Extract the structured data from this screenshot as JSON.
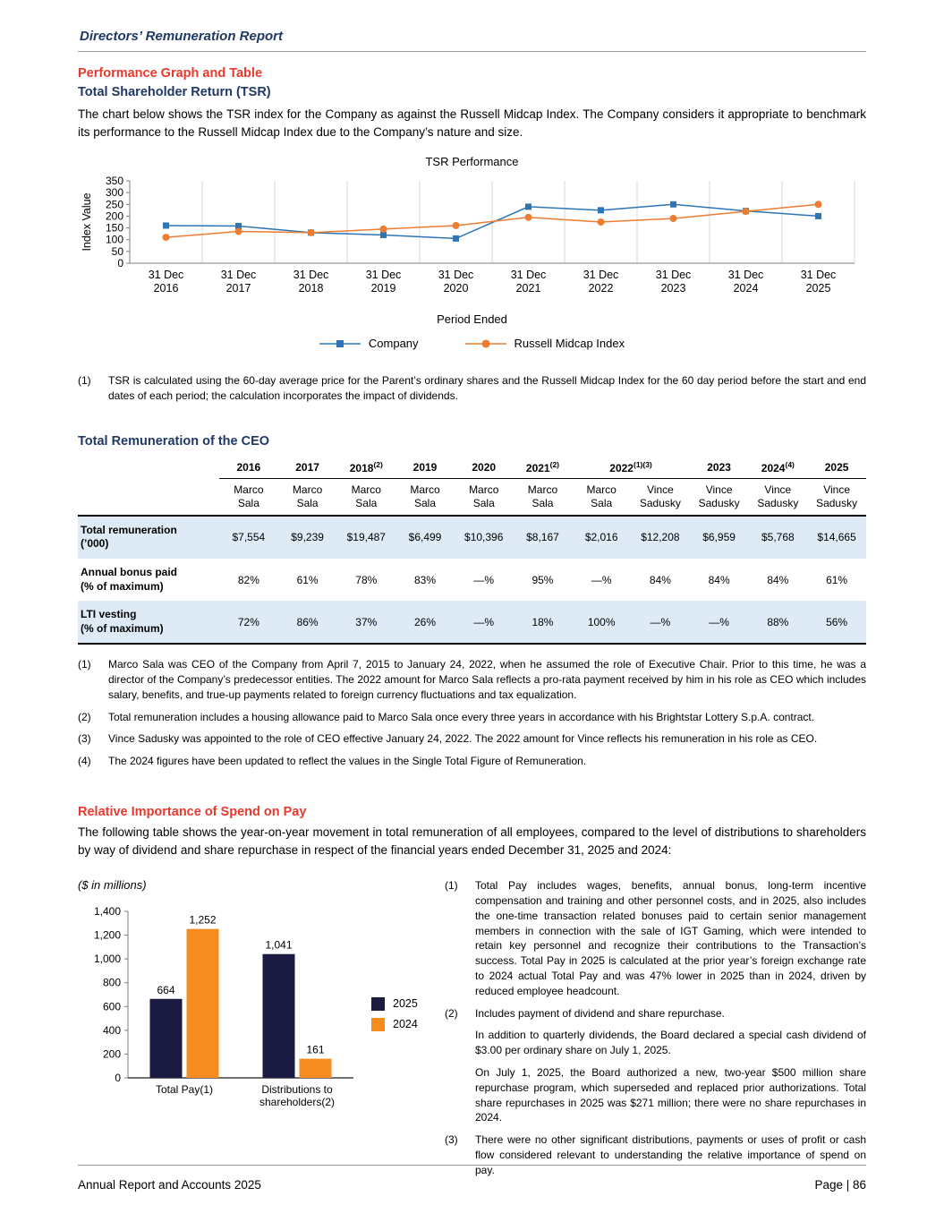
{
  "colors": {
    "red": "#E9392C",
    "navy": "#1F3864",
    "stripe": "#DEEBF7"
  },
  "page": {
    "header_title": "Directors’ Remuneration Report",
    "footer_left": "Annual Report and Accounts 2025",
    "footer_right": "Page | 86"
  },
  "tsr_section": {
    "heading": "Performance Graph and Table",
    "subheading": "Total Shareholder Return (TSR)",
    "body": "The chart below shows the TSR index for the Company as against the Russell Midcap Index. The Company considers it appropriate to benchmark its performance to the Russell Midcap Index due to the Company’s nature and size.",
    "footnote": {
      "num": "(1)",
      "text": "TSR is calculated using the 60-day average price for the Parent’s ordinary shares and the Russell Midcap Index for the 60 day period before the start and end dates of each period; the calculation incorporates the impact of dividends."
    }
  },
  "ceo_section": {
    "heading": "Total Remuneration of the CEO",
    "table": {
      "col_years": [
        {
          "y": "2016"
        },
        {
          "y": "2017"
        },
        {
          "y": "2018",
          "sup": "(2)"
        },
        {
          "y": "2019"
        },
        {
          "y": "2020"
        },
        {
          "y": "2021",
          "sup": "(2)"
        },
        {
          "y": "2022",
          "sup": "(1)(3)",
          "span": 2
        },
        {
          "y": "2023"
        },
        {
          "y": "2024",
          "sup": "(4)"
        },
        {
          "y": "2025"
        }
      ],
      "names": [
        "Marco\nSala",
        "Marco\nSala",
        "Marco\nSala",
        "Marco\nSala",
        "Marco\nSala",
        "Marco\nSala",
        "Marco\nSala",
        "Vince\nSadusky",
        "Vince\nSadusky",
        "Vince\nSadusky",
        "Vince\nSadusky"
      ],
      "rows": [
        {
          "label": "Total remuneration\n(’000)",
          "values": [
            "$7,554",
            "$9,239",
            "$19,487",
            "$6,499",
            "$10,396",
            "$8,167",
            "$2,016",
            "$12,208",
            "$6,959",
            "$5,768",
            "$14,665"
          ],
          "shaded": true
        },
        {
          "label": "Annual bonus paid\n(% of maximum)",
          "values": [
            "82%",
            "61%",
            "78%",
            "83%",
            "—%",
            "95%",
            "—%",
            "84%",
            "84%",
            "84%",
            "61%"
          ],
          "shaded": false
        },
        {
          "label": "LTI vesting\n(% of maximum)",
          "values": [
            "72%",
            "86%",
            "37%",
            "26%",
            "—%",
            "18%",
            "100%",
            "—%",
            "—%",
            "88%",
            "56%"
          ],
          "shaded": true
        }
      ]
    },
    "footnotes": [
      {
        "num": "(1)",
        "text": "Marco Sala was CEO of the Company from April 7, 2015 to January 24, 2022, when he assumed the role of Executive Chair. Prior to this time, he was a director of the Company’s predecessor entities. The 2022 amount for Marco Sala reflects a pro-rata payment received by him in his role as CEO which includes salary, benefits, and true-up payments related to foreign currency fluctuations and tax equalization."
      },
      {
        "num": "(2)",
        "text": "Total remuneration includes a housing allowance paid to Marco Sala once every three years in accordance with his Brightstar Lottery S.p.A. contract."
      },
      {
        "num": "(3)",
        "text": "Vince Sadusky was appointed to the role of CEO effective January 24, 2022. The 2022 amount for Vince reflects his remuneration in his role as CEO."
      },
      {
        "num": "(4)",
        "text": "The 2024 figures have been updated to reflect the values in the Single Total Figure of Remuneration."
      }
    ]
  },
  "spend_section": {
    "heading": "Relative Importance of Spend on Pay",
    "body": "The following table shows the year-on-year movement in total remuneration of all employees, compared to the level of distributions to shareholders by way of dividend and share repurchase in respect of the financial years ended December 31, 2025 and 2024:",
    "footnotes": [
      {
        "num": "(1)",
        "paras": [
          "Total Pay includes wages, benefits, annual bonus, long-term incentive compensation and training and other personnel costs, and in 2025, also includes the one-time transaction related bonuses paid to certain senior management members in connection with the sale of IGT Gaming, which were intended to retain key personnel and recognize their contributions to the Transaction’s success. Total Pay in 2025 is calculated at the prior year’s foreign exchange rate to 2024 actual Total Pay and was 47% lower in 2025 than in 2024, driven by reduced employee headcount."
        ]
      },
      {
        "num": "(2)",
        "paras": [
          "Includes payment of dividend and share repurchase.",
          "In addition to quarterly dividends, the Board declared a special cash dividend of $3.00 per ordinary share on July 1, 2025.",
          "On July 1, 2025, the Board authorized a new, two-year $500 million share repurchase program, which superseded and replaced prior authorizations. Total share repurchases in 2025 was $271 million; there were no share repurchases in 2024."
        ]
      },
      {
        "num": "(3)",
        "paras": [
          "There were no other significant distributions, payments or uses of profit or cash flow considered relevant to understanding the relative importance of spend on pay."
        ]
      }
    ]
  },
  "chart_data": [
    {
      "type": "line",
      "title": "TSR Performance",
      "xlabel": "Period Ended",
      "ylabel": "Index Value",
      "ylim": [
        0,
        350
      ],
      "ytick_step": 50,
      "grid": "vertical",
      "legend_position": "bottom",
      "categories": [
        "31 Dec\n2016",
        "31 Dec\n2017",
        "31 Dec\n2018",
        "31 Dec\n2019",
        "31 Dec\n2020",
        "31 Dec\n2021",
        "31 Dec\n2022",
        "31 Dec\n2023",
        "31 Dec\n2024",
        "31 Dec\n2025"
      ],
      "series": [
        {
          "name": "Company",
          "color": "#2E75B6",
          "marker": "square",
          "values": [
            160,
            158,
            130,
            120,
            105,
            240,
            225,
            250,
            222,
            200
          ]
        },
        {
          "name": "Russell Midcap Index",
          "color": "#ED7D31",
          "marker": "circle",
          "values": [
            110,
            135,
            130,
            145,
            160,
            195,
            175,
            190,
            220,
            250
          ]
        }
      ]
    },
    {
      "type": "bar",
      "units_label": "($ in millions)",
      "ylim": [
        0,
        1400
      ],
      "ytick_step": 200,
      "grid": "off",
      "legend_position": "right",
      "categories": [
        "Total Pay(1)",
        "Distributions to\nshareholders(2)"
      ],
      "series": [
        {
          "name": "2025",
          "color": "#1B1B41",
          "values": [
            664,
            1041
          ]
        },
        {
          "name": "2024",
          "color": "#F68B1F",
          "values": [
            1252,
            161
          ]
        }
      ]
    }
  ]
}
